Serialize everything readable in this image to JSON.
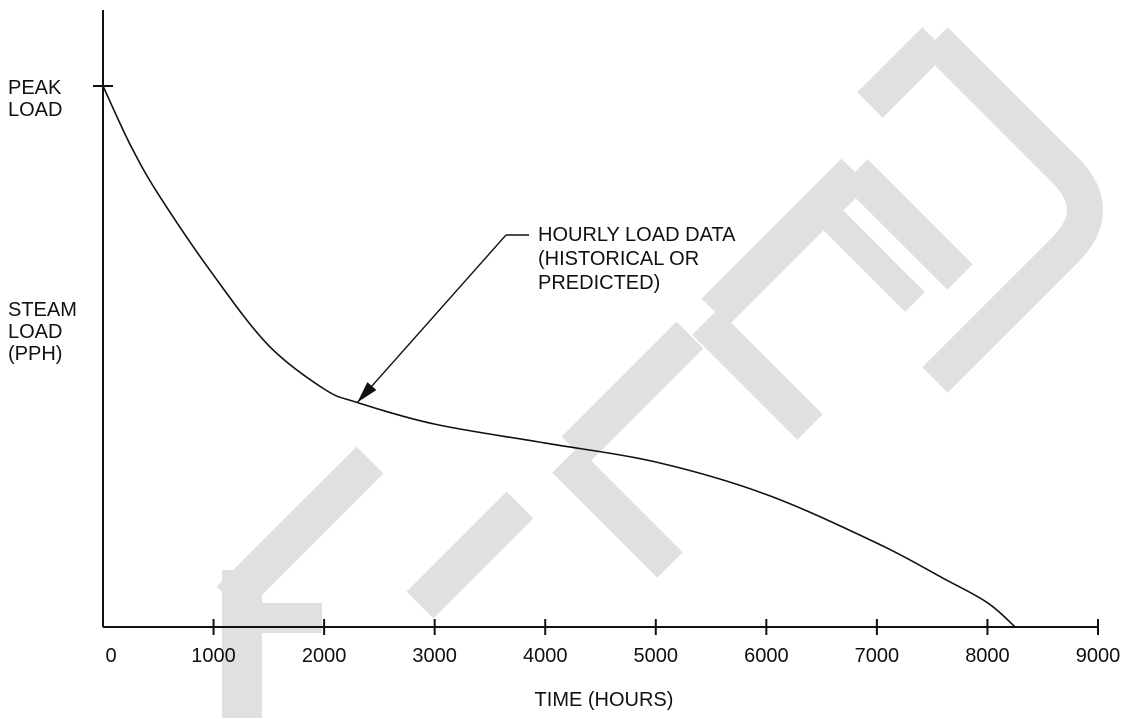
{
  "chart_data": {
    "type": "line",
    "title": "",
    "xlabel": "TIME (HOURS)",
    "ylabel": [
      "STEAM",
      "LOAD",
      "(PPH)"
    ],
    "peak_label": [
      "PEAK",
      "LOAD"
    ],
    "x_ticks": [
      0,
      1000,
      2000,
      3000,
      4000,
      5000,
      6000,
      7000,
      8000,
      9000
    ],
    "x_tick_labels": [
      "0",
      "1000",
      "2000",
      "3000",
      "4000",
      "5000",
      "6000",
      "7000",
      "8000",
      "9000"
    ],
    "xlim": [
      0,
      9000
    ],
    "ylim": [
      0,
      1
    ],
    "y_unit_note": "relative to peak load (y-axis values not printed)",
    "grid": false,
    "series": [
      {
        "x": [
          0,
          250,
          500,
          1000,
          1500,
          2000,
          2300,
          3000,
          4000,
          5000,
          6000,
          7000,
          7600,
          8000,
          8250
        ],
        "y": [
          1.0,
          0.89,
          0.8,
          0.65,
          0.52,
          0.44,
          0.415,
          0.375,
          0.34,
          0.305,
          0.245,
          0.155,
          0.09,
          0.045,
          0.0
        ]
      }
    ],
    "annotations": [
      {
        "text": [
          "HOURLY LOAD DATA",
          "(HISTORICAL OR",
          "PREDICTED)"
        ],
        "arrow_target": {
          "x": 2300,
          "y": 0.415
        }
      }
    ],
    "watermark": "FILLED",
    "colors": {
      "line": "#111111",
      "watermark": "#e0e0e0"
    }
  }
}
